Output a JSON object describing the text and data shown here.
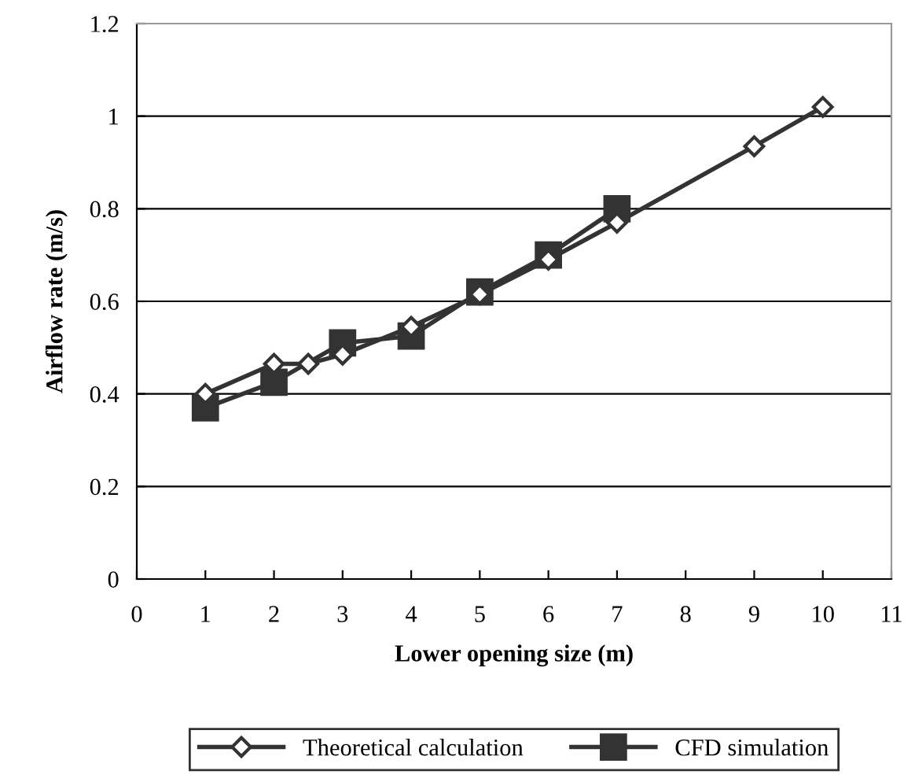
{
  "chart_data": {
    "type": "line",
    "xlabel": "Lower opening size (m)",
    "ylabel": "Airflow rate (m/s)",
    "xlim": [
      0,
      11
    ],
    "xticks": [
      0,
      1,
      2,
      3,
      4,
      5,
      6,
      7,
      8,
      9,
      10,
      11
    ],
    "ylim": [
      0,
      1.2
    ],
    "yticks": [
      0,
      {
        "value": 0.2,
        "label": "0.2"
      },
      {
        "value": 0.4,
        "label": "0.4"
      },
      {
        "value": 0.6,
        "label": "0.6"
      },
      {
        "value": 0.8,
        "label": "0.8"
      },
      1,
      {
        "value": 1.2,
        "label": "1.2"
      }
    ],
    "grid": "y",
    "legend": "bottom",
    "line_style": "solid",
    "series": [
      {
        "name": "Theoretical calculation",
        "color": "#333333",
        "marker": "diamond",
        "x": [
          1,
          2,
          2.5,
          3,
          4,
          5,
          6,
          7,
          9,
          10
        ],
        "values": [
          0.4,
          0.465,
          0.465,
          0.485,
          0.545,
          0.615,
          0.69,
          0.77,
          0.935,
          1.02
        ]
      },
      {
        "name": "CFD simulation",
        "color": "#333333",
        "marker": "square",
        "x": [
          1,
          2,
          3,
          4,
          5,
          6,
          7
        ],
        "values": [
          0.37,
          0.425,
          0.51,
          0.525,
          0.62,
          0.7,
          0.8
        ]
      }
    ]
  }
}
